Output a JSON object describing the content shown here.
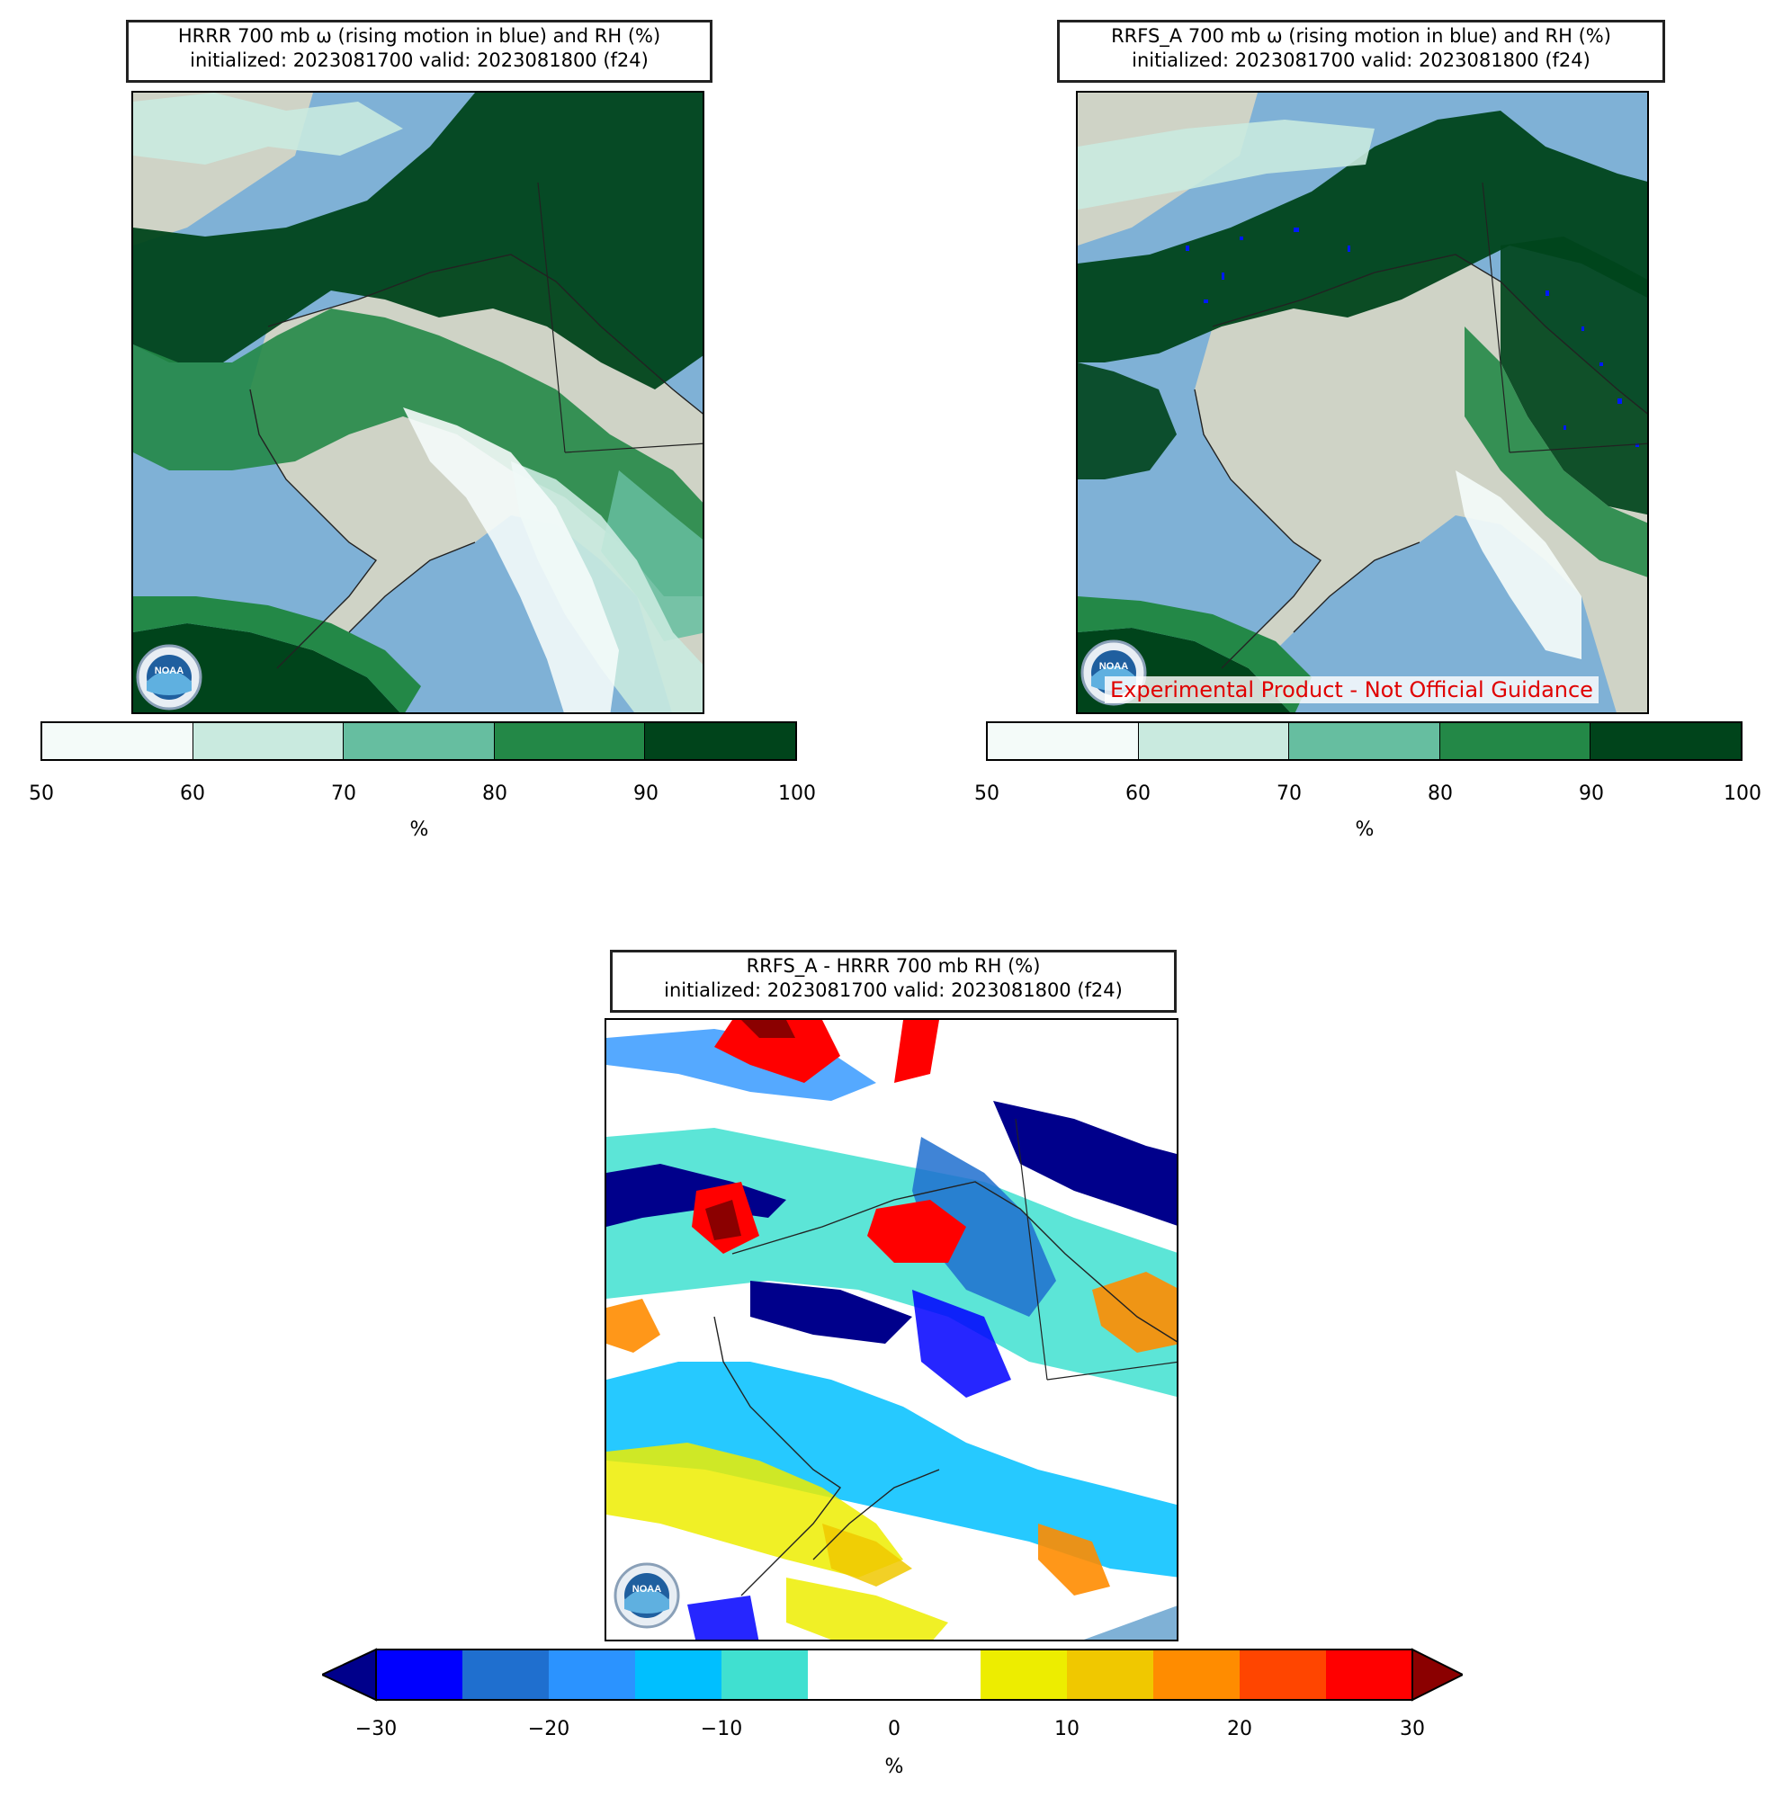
{
  "panels": [
    {
      "id": "hrrr",
      "title_line1": "HRRR 700 mb ω (rising motion in blue) and RH (%)",
      "title_line2": "initialized: 2023081700 valid: 2023081800 (f24)",
      "logo_text": "NOAA"
    },
    {
      "id": "rrfs",
      "title_line1": "RRFS_A 700 mb ω (rising motion in blue) and RH (%)",
      "title_line2": "initialized: 2023081700 valid: 2023081800 (f24)",
      "logo_text": "NOAA",
      "watermark": "Experimental Product - Not Official Guidance"
    },
    {
      "id": "diff",
      "title_line1": "RRFS_A - HRRR 700 mb RH (%)",
      "title_line2": "initialized: 2023081700 valid: 2023081800 (f24)",
      "logo_text": "NOAA"
    }
  ],
  "rh_colorbar": {
    "unit": "%",
    "ticks": [
      "50",
      "60",
      "70",
      "80",
      "90",
      "100"
    ],
    "colors": [
      "#f4fbf9",
      "#c9eadf",
      "#66bea0",
      "#238847",
      "#00441b"
    ]
  },
  "diff_colorbar": {
    "unit": "%",
    "ticks": [
      "−30",
      "−20",
      "−10",
      "0",
      "10",
      "20",
      "30"
    ],
    "colors": [
      "#0000ff",
      "#1f6fcf",
      "#2b93ff",
      "#00bfff",
      "#40e0d0",
      "#ffffff",
      "#ffffff",
      "#eded00",
      "#f0c800",
      "#ff8c00",
      "#ff4500",
      "#ff0000"
    ],
    "under_color": "#00008b",
    "over_color": "#8b0000"
  },
  "colors": {
    "ocean": "#7fb1d6",
    "land": "#cfd3c6",
    "coast": "#222222"
  }
}
